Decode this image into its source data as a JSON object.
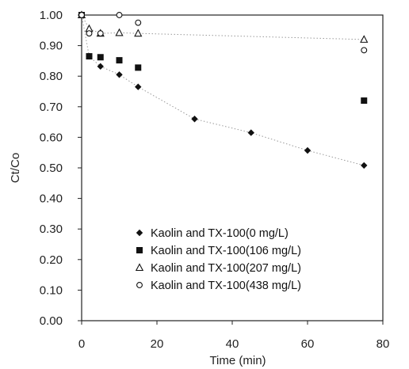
{
  "chart_data": {
    "type": "scatter",
    "title": "",
    "xlabel": "Time (min)",
    "ylabel": "Ct/Co",
    "xlim": [
      0,
      80
    ],
    "ylim": [
      0,
      1.0
    ],
    "x_ticks": [
      "0",
      "20",
      "40",
      "60",
      "80"
    ],
    "x_tick_values": [
      0,
      20,
      40,
      60,
      80
    ],
    "y_ticks": [
      "0.00",
      "0.10",
      "0.20",
      "0.30",
      "0.40",
      "0.50",
      "0.60",
      "0.70",
      "0.80",
      "0.90",
      "1.00"
    ],
    "y_tick_values": [
      0,
      0.1,
      0.2,
      0.3,
      0.4,
      0.5,
      0.6,
      0.7,
      0.8,
      0.9,
      1.0
    ],
    "grid": false,
    "legend_position": "bottom-right",
    "series": [
      {
        "name": "Kaolin and TX-100(0 mg/L)",
        "marker": "filled-diamond",
        "trendline": true,
        "points": [
          [
            0,
            1.0
          ],
          [
            2,
            0.865
          ],
          [
            5,
            0.832
          ],
          [
            10,
            0.805
          ],
          [
            15,
            0.765
          ],
          [
            30,
            0.66
          ],
          [
            45,
            0.615
          ],
          [
            60,
            0.557
          ],
          [
            75,
            0.508
          ]
        ]
      },
      {
        "name": "Kaolin and TX-100(106 mg/L)",
        "marker": "filled-square",
        "trendline": false,
        "points": [
          [
            0,
            1.0
          ],
          [
            2,
            0.865
          ],
          [
            5,
            0.862
          ],
          [
            10,
            0.852
          ],
          [
            15,
            0.828
          ],
          [
            75,
            0.72
          ]
        ]
      },
      {
        "name": "Kaolin and TX-100(207 mg/L)",
        "marker": "open-triangle",
        "trendline": true,
        "points": [
          [
            0,
            1.0
          ],
          [
            2,
            0.955
          ],
          [
            5,
            0.94
          ],
          [
            10,
            0.942
          ],
          [
            15,
            0.94
          ],
          [
            75,
            0.92
          ]
        ]
      },
      {
        "name": "Kaolin and TX-100(438 mg/L)",
        "marker": "open-circle",
        "trendline": false,
        "points": [
          [
            0,
            1.0
          ],
          [
            2,
            0.94
          ],
          [
            5,
            0.94
          ],
          [
            10,
            1.0
          ],
          [
            15,
            0.975
          ],
          [
            75,
            0.885
          ]
        ]
      }
    ]
  },
  "colors": {
    "marker": "#111111",
    "axis": "#222222",
    "trendline": "#9a9a9a"
  }
}
